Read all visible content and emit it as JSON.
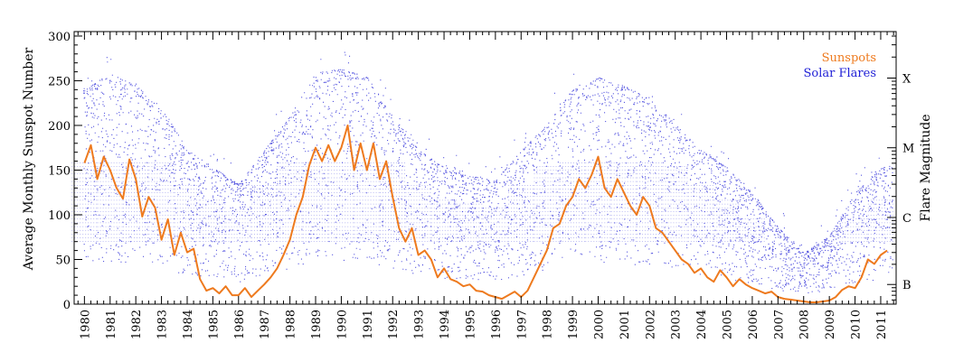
{
  "chart_data": {
    "type": "scatter",
    "xlabel": "",
    "ylabel": "Average Monthly Sunspot Number",
    "y2label": "Flare Magnitude",
    "xlim": [
      1979.6,
      2011.6
    ],
    "ylim": [
      0,
      305
    ],
    "x_ticks": [
      "1980",
      "1981",
      "1982",
      "1983",
      "1984",
      "1985",
      "1986",
      "1987",
      "1988",
      "1989",
      "1990",
      "1991",
      "1992",
      "1993",
      "1994",
      "1995",
      "1996",
      "1997",
      "1998",
      "1999",
      "2000",
      "2001",
      "2002",
      "2003",
      "2004",
      "2005",
      "2006",
      "2007",
      "2008",
      "2009",
      "2010",
      "2011"
    ],
    "y_ticks": [
      0,
      50,
      100,
      150,
      200,
      250,
      300
    ],
    "y2_ticks": [
      {
        "label": "B",
        "value": 22
      },
      {
        "label": "C",
        "value": 97
      },
      {
        "label": "M",
        "value": 175
      },
      {
        "label": "X",
        "value": 253
      }
    ],
    "legend": {
      "placement": "top-right"
    },
    "colors": {
      "sunspots": "#ee7a1e",
      "flares": "#1f1fd6"
    },
    "series": [
      {
        "name": "Sunspots",
        "style": "line",
        "x": [
          1980.0,
          1980.25,
          1980.5,
          1980.75,
          1981.0,
          1981.25,
          1981.5,
          1981.75,
          1982.0,
          1982.25,
          1982.5,
          1982.75,
          1983.0,
          1983.25,
          1983.5,
          1983.75,
          1984.0,
          1984.25,
          1984.5,
          1984.75,
          1985.0,
          1985.25,
          1985.5,
          1985.75,
          1986.0,
          1986.25,
          1986.5,
          1986.75,
          1987.0,
          1987.25,
          1987.5,
          1987.75,
          1988.0,
          1988.25,
          1988.5,
          1988.75,
          1989.0,
          1989.25,
          1989.5,
          1989.75,
          1990.0,
          1990.25,
          1990.5,
          1990.75,
          1991.0,
          1991.25,
          1991.5,
          1991.75,
          1992.0,
          1992.25,
          1992.5,
          1992.75,
          1993.0,
          1993.25,
          1993.5,
          1993.75,
          1994.0,
          1994.25,
          1994.5,
          1994.75,
          1995.0,
          1995.25,
          1995.5,
          1995.75,
          1996.0,
          1996.25,
          1996.5,
          1996.75,
          1997.0,
          1997.25,
          1997.5,
          1997.75,
          1998.0,
          1998.25,
          1998.5,
          1998.75,
          1999.0,
          1999.25,
          1999.5,
          1999.75,
          2000.0,
          2000.25,
          2000.5,
          2000.75,
          2001.0,
          2001.25,
          2001.5,
          2001.75,
          2002.0,
          2002.25,
          2002.5,
          2002.75,
          2003.0,
          2003.25,
          2003.5,
          2003.75,
          2004.0,
          2004.25,
          2004.5,
          2004.75,
          2005.0,
          2005.25,
          2005.5,
          2005.75,
          2006.0,
          2006.25,
          2006.5,
          2006.75,
          2007.0,
          2007.25,
          2007.5,
          2007.75,
          2008.0,
          2008.25,
          2008.5,
          2008.75,
          2009.0,
          2009.25,
          2009.5,
          2009.75,
          2010.0,
          2010.25,
          2010.5,
          2010.75,
          2011.0,
          2011.25
        ],
        "values": [
          158,
          178,
          140,
          165,
          150,
          130,
          118,
          162,
          140,
          98,
          120,
          108,
          72,
          95,
          55,
          80,
          58,
          62,
          28,
          15,
          18,
          12,
          20,
          10,
          10,
          18,
          8,
          15,
          22,
          30,
          40,
          55,
          72,
          100,
          120,
          155,
          175,
          160,
          178,
          160,
          175,
          200,
          150,
          180,
          150,
          180,
          140,
          160,
          120,
          85,
          70,
          85,
          55,
          60,
          50,
          30,
          40,
          28,
          25,
          20,
          22,
          15,
          14,
          10,
          8,
          6,
          10,
          14,
          8,
          15,
          30,
          45,
          60,
          85,
          90,
          110,
          120,
          140,
          130,
          145,
          165,
          130,
          120,
          140,
          125,
          110,
          100,
          120,
          110,
          85,
          80,
          70,
          60,
          50,
          45,
          35,
          40,
          30,
          25,
          38,
          30,
          20,
          28,
          22,
          18,
          15,
          12,
          14,
          8,
          6,
          5,
          4,
          3,
          2,
          2,
          3,
          4,
          8,
          16,
          20,
          18,
          30,
          50,
          45,
          55,
          60
        ]
      },
      {
        "name": "Solar Flares",
        "style": "points",
        "envelope_x": [
          1980,
          1981,
          1982,
          1983,
          1984,
          1985,
          1986,
          1987,
          1988,
          1989,
          1990,
          1991,
          1992,
          1993,
          1994,
          1995,
          1996,
          1997,
          1998,
          1999,
          2000,
          2001,
          2002,
          2003,
          2004,
          2005,
          2006,
          2007,
          2008,
          2009,
          2010,
          2011
        ],
        "envelope_high": [
          250,
          270,
          255,
          230,
          180,
          160,
          140,
          180,
          220,
          270,
          275,
          265,
          220,
          180,
          160,
          150,
          145,
          180,
          210,
          250,
          265,
          255,
          240,
          210,
          180,
          160,
          130,
          90,
          60,
          80,
          130,
          160
        ]
      }
    ]
  }
}
